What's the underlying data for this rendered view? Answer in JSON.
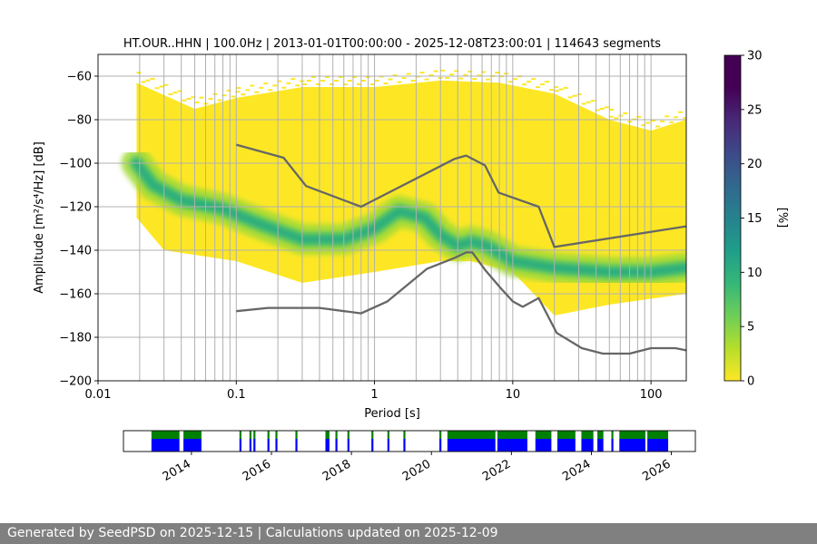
{
  "chart_data": [
    {
      "type": "heatmap",
      "title": "HT.OUR..HHN | 100.0Hz | 2013-01-01T00:00:00 - 2025-12-08T23:00:01 | 114643 segments",
      "xlabel": "Period [s]",
      "ylabel": "Amplitude [m²/s⁴/Hz] [dB]",
      "x_scale": "log",
      "xlim": [
        0.01,
        180
      ],
      "ylim": [
        -200,
        -50
      ],
      "x_ticks": [
        "0.01",
        "0.1",
        "1",
        "10",
        "100"
      ],
      "y_ticks": [
        "−60",
        "−80",
        "−100",
        "−120",
        "−140",
        "−160",
        "−180",
        "−200"
      ],
      "colorbar": {
        "label": "[%]",
        "range": [
          0,
          30
        ],
        "ticks": [
          "0",
          "5",
          "10",
          "15",
          "20",
          "25",
          "30"
        ],
        "colormap": "viridis_r"
      },
      "grid": true,
      "vertical_grid_periods": [
        0.02,
        0.03,
        0.04,
        0.05,
        0.06,
        0.07,
        0.08,
        0.09,
        0.1,
        0.2,
        0.3,
        0.4,
        0.5,
        0.6,
        0.7,
        0.8,
        0.9,
        1,
        2,
        3,
        4,
        5,
        6,
        7,
        8,
        9,
        10,
        20,
        30,
        40,
        50,
        60,
        70,
        80,
        90,
        100
      ],
      "mode_curve": [
        [
          0.019,
          -100
        ],
        [
          0.025,
          -110
        ],
        [
          0.04,
          -117
        ],
        [
          0.08,
          -121
        ],
        [
          0.15,
          -128
        ],
        [
          0.3,
          -135
        ],
        [
          0.6,
          -135
        ],
        [
          1,
          -130
        ],
        [
          1.5,
          -122
        ],
        [
          2.3,
          -125
        ],
        [
          3,
          -133
        ],
        [
          4,
          -138
        ],
        [
          5,
          -136
        ],
        [
          6.5,
          -138
        ],
        [
          10,
          -145
        ],
        [
          20,
          -148
        ],
        [
          50,
          -150
        ],
        [
          100,
          -150
        ],
        [
          180,
          -148
        ]
      ],
      "envelope_upper": [
        [
          0.019,
          -63
        ],
        [
          0.05,
          -75
        ],
        [
          0.1,
          -70
        ],
        [
          0.3,
          -65
        ],
        [
          1,
          -65
        ],
        [
          3,
          -62
        ],
        [
          8,
          -63
        ],
        [
          20,
          -68
        ],
        [
          50,
          -80
        ],
        [
          100,
          -85
        ],
        [
          180,
          -80
        ]
      ],
      "envelope_lower": [
        [
          0.019,
          -125
        ],
        [
          0.03,
          -140
        ],
        [
          0.1,
          -145
        ],
        [
          0.3,
          -155
        ],
        [
          1,
          -150
        ],
        [
          3,
          -145
        ],
        [
          5,
          -145
        ],
        [
          10,
          -150
        ],
        [
          20,
          -170
        ],
        [
          50,
          -165
        ],
        [
          180,
          -160
        ]
      ],
      "model_curves": [
        {
          "name": "high",
          "points": [
            [
              0.1,
              -91.5
            ],
            [
              0.22,
              -97.5
            ],
            [
              0.32,
              -110.5
            ],
            [
              0.8,
              -120
            ],
            [
              3.8,
              -98
            ],
            [
              4.6,
              -96.5
            ],
            [
              6.3,
              -101
            ],
            [
              7.9,
              -113.5
            ],
            [
              15.4,
              -120
            ],
            [
              20,
              -138.5
            ],
            [
              180,
              -129
            ]
          ]
        },
        {
          "name": "low",
          "points": [
            [
              0.1,
              -168
            ],
            [
              0.17,
              -166.5
            ],
            [
              0.4,
              -166.5
            ],
            [
              0.8,
              -169
            ],
            [
              1.24,
              -163.5
            ],
            [
              2.4,
              -148.5
            ],
            [
              3.8,
              -143.5
            ],
            [
              4.6,
              -141
            ],
            [
              5.1,
              -141
            ],
            [
              6.3,
              -149
            ],
            [
              8.2,
              -157.5
            ],
            [
              10,
              -163.5
            ],
            [
              11.8,
              -166
            ],
            [
              15.4,
              -162
            ],
            [
              20.8,
              -178
            ],
            [
              31.6,
              -185
            ],
            [
              44.8,
              -187.5
            ],
            [
              70,
              -187.5
            ],
            [
              100,
              -185
            ],
            [
              150,
              -185
            ],
            [
              180,
              -186
            ]
          ]
        }
      ]
    },
    {
      "type": "timeline",
      "x_ticks": [
        "2014",
        "2016",
        "2018",
        "2020",
        "2022",
        "2024",
        "2026"
      ],
      "xlim": [
        2012.3,
        2026.6
      ],
      "availability_segments": [
        [
          2013.0,
          2013.7
        ],
        [
          2013.8,
          2014.25
        ],
        [
          2015.2,
          2015.25
        ],
        [
          2015.45,
          2015.5
        ],
        [
          2015.55,
          2015.6
        ],
        [
          2015.9,
          2015.95
        ],
        [
          2016.1,
          2016.15
        ],
        [
          2016.6,
          2016.65
        ],
        [
          2017.35,
          2017.45
        ],
        [
          2017.6,
          2017.65
        ],
        [
          2017.9,
          2017.95
        ],
        [
          2018.5,
          2018.55
        ],
        [
          2018.9,
          2018.95
        ],
        [
          2019.3,
          2019.35
        ],
        [
          2020.2,
          2020.25
        ],
        [
          2020.4,
          2021.6
        ],
        [
          2021.65,
          2022.4
        ],
        [
          2022.6,
          2023.0
        ],
        [
          2023.15,
          2023.6
        ],
        [
          2023.75,
          2024.05
        ],
        [
          2024.15,
          2024.3
        ],
        [
          2024.5,
          2024.55
        ],
        [
          2024.7,
          2025.35
        ],
        [
          2025.4,
          2025.92
        ]
      ]
    }
  ],
  "footer": "Generated by SeedPSD on 2025-12-15 | Calculations updated on 2025-12-09"
}
